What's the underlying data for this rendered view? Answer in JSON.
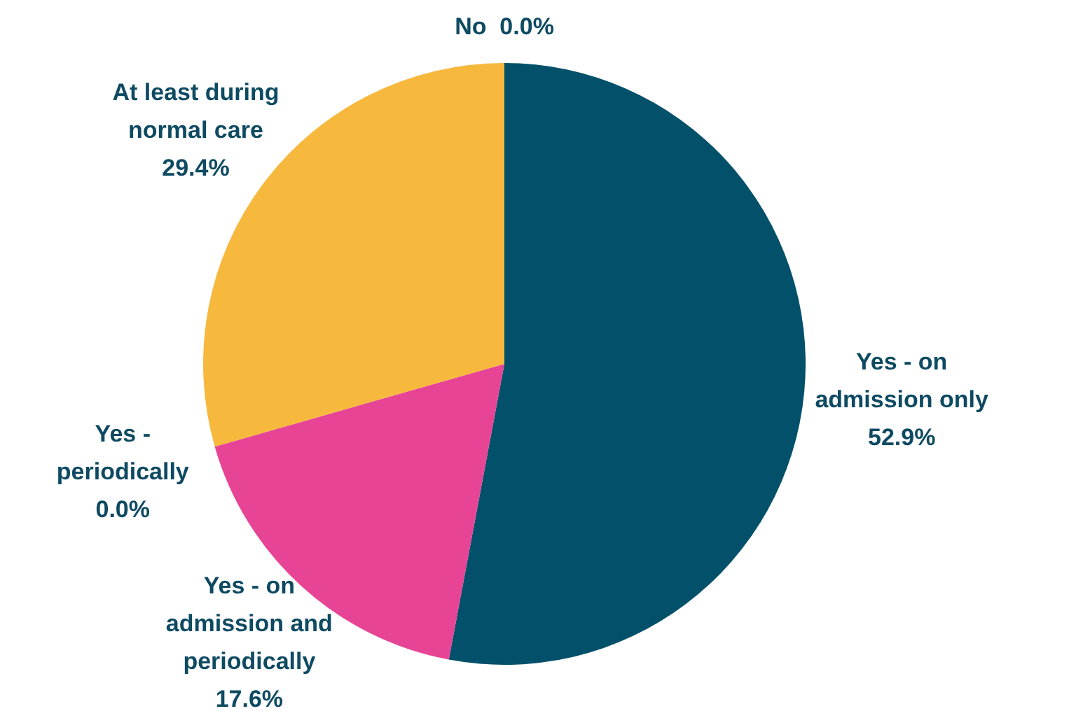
{
  "chart_data": {
    "type": "pie",
    "categories": [
      "Yes - on admission only",
      "Yes - on admission and periodically",
      "Yes - periodically",
      "At least during normal care",
      "No"
    ],
    "values": [
      52.9,
      17.6,
      0.0,
      29.4,
      0.0
    ],
    "colors": [
      "#02506a",
      "#e84496",
      "#8a8a8a",
      "#f7b83e",
      "#5a5a5a"
    ],
    "value_labels": [
      "52.9%",
      "17.6%",
      "0.0%",
      "29.4%",
      "0.0%"
    ],
    "legend": false
  }
}
